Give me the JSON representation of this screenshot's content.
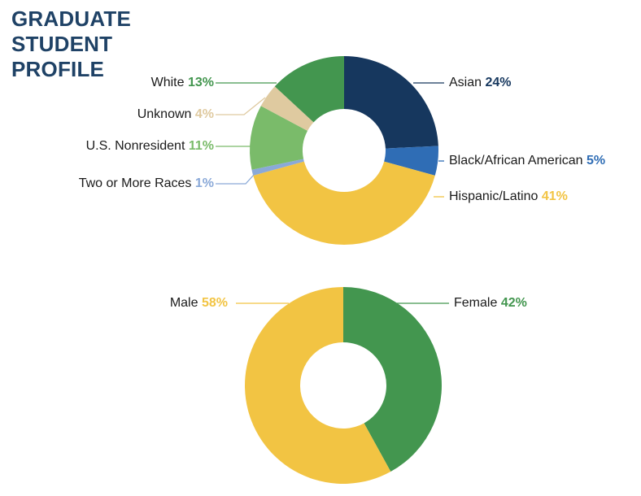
{
  "title_lines": [
    "GRADUATE",
    "STUDENT",
    "PROFILE"
  ],
  "colors": {
    "title": "#1f4266",
    "asian": "#16375e",
    "black": "#2f6db5",
    "hispanic": "#f2c443",
    "two_or_more": "#8aa9d8",
    "nonresident": "#7abb6a",
    "unknown": "#dfcaa0",
    "white": "#43964f",
    "male": "#f2c443",
    "female": "#43964f"
  },
  "ethnicity": {
    "labels": [
      {
        "name": "White",
        "pct": "13%"
      },
      {
        "name": "Unknown",
        "pct": "4%"
      },
      {
        "name": "U.S. Nonresident",
        "pct": "11%"
      },
      {
        "name": "Two or More Races",
        "pct": "1%"
      },
      {
        "name": "Asian",
        "pct": "24%"
      },
      {
        "name": "Black/African American",
        "pct": "5%"
      },
      {
        "name": "Hispanic/Latino",
        "pct": "41%"
      }
    ]
  },
  "gender": {
    "labels": [
      {
        "name": "Male",
        "pct": "58%"
      },
      {
        "name": "Female",
        "pct": "42%"
      }
    ]
  },
  "chart_data": [
    {
      "type": "pie",
      "subtype": "donut",
      "title": "Graduate Student Profile — Race/Ethnicity",
      "categories": [
        "Asian",
        "Black/African American",
        "Hispanic/Latino",
        "Two or More Races",
        "U.S. Nonresident",
        "Unknown",
        "White"
      ],
      "values": [
        24,
        5,
        41,
        1,
        11,
        4,
        13
      ],
      "unit": "%",
      "colors": [
        "#16375e",
        "#2f6db5",
        "#f2c443",
        "#8aa9d8",
        "#7abb6a",
        "#dfcaa0",
        "#43964f"
      ],
      "start_angle": "12 o'clock, clockwise",
      "legend": "leader-line labels"
    },
    {
      "type": "pie",
      "subtype": "donut",
      "title": "Graduate Student Profile — Gender",
      "categories": [
        "Female",
        "Male"
      ],
      "values": [
        42,
        58
      ],
      "unit": "%",
      "colors": [
        "#43964f",
        "#f2c443"
      ],
      "start_angle": "12 o'clock, clockwise",
      "legend": "leader-line labels"
    }
  ]
}
